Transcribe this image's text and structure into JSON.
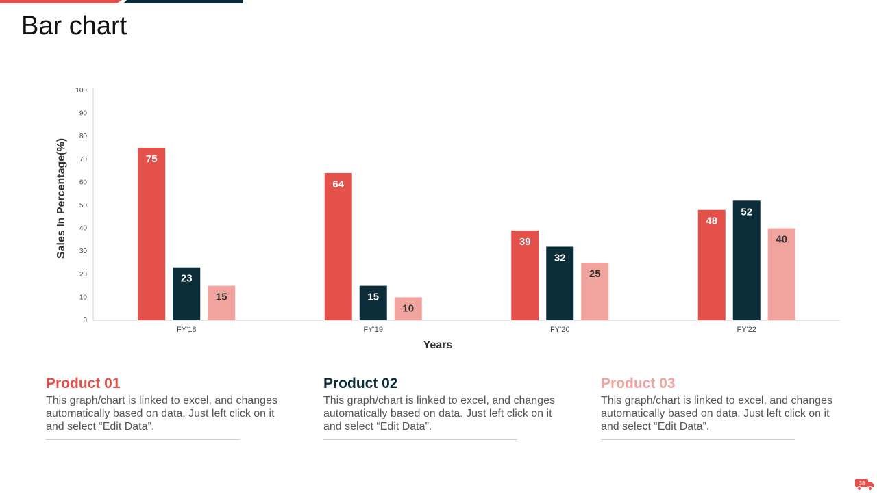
{
  "page": {
    "title": "Bar chart",
    "page_number": "38"
  },
  "colors": {
    "product1": "#e4504a",
    "product2": "#0b2d3a",
    "product3": "#f0a49d",
    "axis": "#cccccc",
    "tick_text": "#444444"
  },
  "chart_data": {
    "type": "bar",
    "title": "",
    "xlabel": "Years",
    "ylabel": "Sales In Percentage(%)",
    "ylim": [
      0,
      100
    ],
    "yticks": [
      0,
      10,
      20,
      30,
      40,
      50,
      60,
      70,
      80,
      90,
      100
    ],
    "categories": [
      "FY'18",
      "FY'19",
      "FY'20",
      "FY'22"
    ],
    "series": [
      {
        "name": "Product 01",
        "values": [
          75,
          64,
          39,
          48
        ],
        "label_color": "#ffffff"
      },
      {
        "name": "Product 02",
        "values": [
          23,
          15,
          32,
          52
        ],
        "label_color": "#ffffff"
      },
      {
        "name": "Product 03",
        "values": [
          15,
          10,
          25,
          40
        ],
        "label_color": "#333333"
      }
    ]
  },
  "cards": [
    {
      "title": "Product 01",
      "text": "This graph/chart is linked to excel, and changes automatically based on data. Just left click on it and select “Edit Data”."
    },
    {
      "title": "Product 02",
      "text": "This graph/chart is linked to excel, and changes automatically based on data. Just left click on it and select “Edit Data”."
    },
    {
      "title": "Product 03",
      "text": "This graph/chart is linked to excel, and changes automatically based on data. Just left click on it and select “Edit Data”."
    }
  ]
}
